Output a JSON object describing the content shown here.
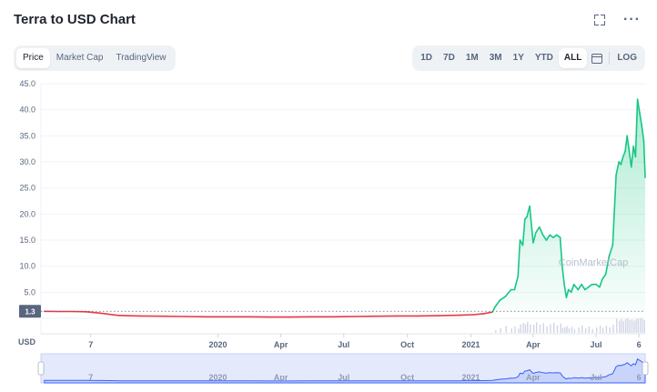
{
  "header": {
    "title": "Terra to USD Chart"
  },
  "icons": {
    "fullscreen": "fullscreen-icon",
    "more": "more-icon",
    "calendar": "calendar-icon"
  },
  "tabs": [
    {
      "label": "Price",
      "active": true
    },
    {
      "label": "Market Cap",
      "active": false
    },
    {
      "label": "TradingView",
      "active": false
    }
  ],
  "ranges": [
    {
      "label": "1D",
      "active": false
    },
    {
      "label": "7D",
      "active": false
    },
    {
      "label": "1M",
      "active": false
    },
    {
      "label": "3M",
      "active": false
    },
    {
      "label": "1Y",
      "active": false
    },
    {
      "label": "YTD",
      "active": false
    },
    {
      "label": "ALL",
      "active": true
    }
  ],
  "log_label": "LOG",
  "more_label": "···",
  "colors": {
    "up": "#16c784",
    "down": "#ea3943",
    "volume": "#cfd6e4",
    "navigator": "#e4e9fb",
    "navigator_line": "#3861fb"
  },
  "chart_data": {
    "type": "line",
    "currency_label": "USD",
    "watermark": "CoinMarketCap",
    "last_price_label": "1.3",
    "ylim": [
      0,
      45
    ],
    "y_ticks": [
      "45.0",
      "40.0",
      "35.0",
      "30.0",
      "25.0",
      "20.0",
      "15.0",
      "10.0",
      "5.0"
    ],
    "y_tick_values": [
      45,
      40,
      35,
      30,
      25,
      20,
      15,
      10,
      5
    ],
    "x_tick_labels": [
      "7",
      "2020",
      "Apr",
      "Jul",
      "Oct",
      "2021",
      "Apr",
      "Jul",
      "6"
    ],
    "x_tick_dates": [
      "2019-07-01",
      "2020-01-01",
      "2020-04-01",
      "2020-07-01",
      "2020-10-01",
      "2021-01-01",
      "2021-04-01",
      "2021-07-01",
      "2021-09-01"
    ],
    "x_range": [
      "2019-04-20",
      "2021-09-10"
    ],
    "series": [
      {
        "dates": [
          "2019-04-25",
          "2019-05-15",
          "2019-06-05",
          "2019-06-25",
          "2019-07-15",
          "2019-08-10",
          "2019-09-10",
          "2019-10-15",
          "2019-11-15",
          "2019-12-15",
          "2020-01-15",
          "2020-02-15",
          "2020-03-15",
          "2020-04-15",
          "2020-05-15",
          "2020-06-15",
          "2020-07-15",
          "2020-08-15",
          "2020-09-15",
          "2020-10-15",
          "2020-11-15",
          "2020-12-15",
          "2021-01-05",
          "2021-01-20",
          "2021-02-01",
          "2021-02-05",
          "2021-02-12",
          "2021-02-20",
          "2021-02-28",
          "2021-03-05",
          "2021-03-10",
          "2021-03-13",
          "2021-03-17",
          "2021-03-20",
          "2021-03-23",
          "2021-03-27",
          "2021-04-01",
          "2021-04-05",
          "2021-04-10",
          "2021-04-15",
          "2021-04-20",
          "2021-04-25",
          "2021-04-30",
          "2021-05-05",
          "2021-05-10",
          "2021-05-13",
          "2021-05-16",
          "2021-05-19",
          "2021-05-22",
          "2021-05-26",
          "2021-05-30",
          "2021-06-05",
          "2021-06-10",
          "2021-06-15",
          "2021-06-20",
          "2021-06-25",
          "2021-07-01",
          "2021-07-06",
          "2021-07-10",
          "2021-07-15",
          "2021-07-20",
          "2021-07-25",
          "2021-07-30",
          "2021-08-03",
          "2021-08-06",
          "2021-08-09",
          "2021-08-12",
          "2021-08-15",
          "2021-08-18",
          "2021-08-21",
          "2021-08-24",
          "2021-08-27",
          "2021-08-30",
          "2021-09-02",
          "2021-09-05",
          "2021-09-08",
          "2021-09-10"
        ],
        "values": [
          1.35,
          1.3,
          1.3,
          1.25,
          1.0,
          0.55,
          0.45,
          0.4,
          0.35,
          0.3,
          0.3,
          0.3,
          0.25,
          0.25,
          0.3,
          0.3,
          0.35,
          0.4,
          0.45,
          0.45,
          0.5,
          0.6,
          0.7,
          0.9,
          1.2,
          2.2,
          3.5,
          4.2,
          5.5,
          5.5,
          8.0,
          15.0,
          14.0,
          19.0,
          19.5,
          21.5,
          14.5,
          16.5,
          17.5,
          16.0,
          15.0,
          16.0,
          15.5,
          16.0,
          15.5,
          10.0,
          6.5,
          4.0,
          5.5,
          5.0,
          6.5,
          5.5,
          6.5,
          5.5,
          6.0,
          6.5,
          6.5,
          6.0,
          7.5,
          8.5,
          12.0,
          14.0,
          27.5,
          30.0,
          29.5,
          31.0,
          32.0,
          35.0,
          32.0,
          29.0,
          33.0,
          31.0,
          42.0,
          39.5,
          37.0,
          34.0,
          27.0
        ]
      }
    ]
  }
}
